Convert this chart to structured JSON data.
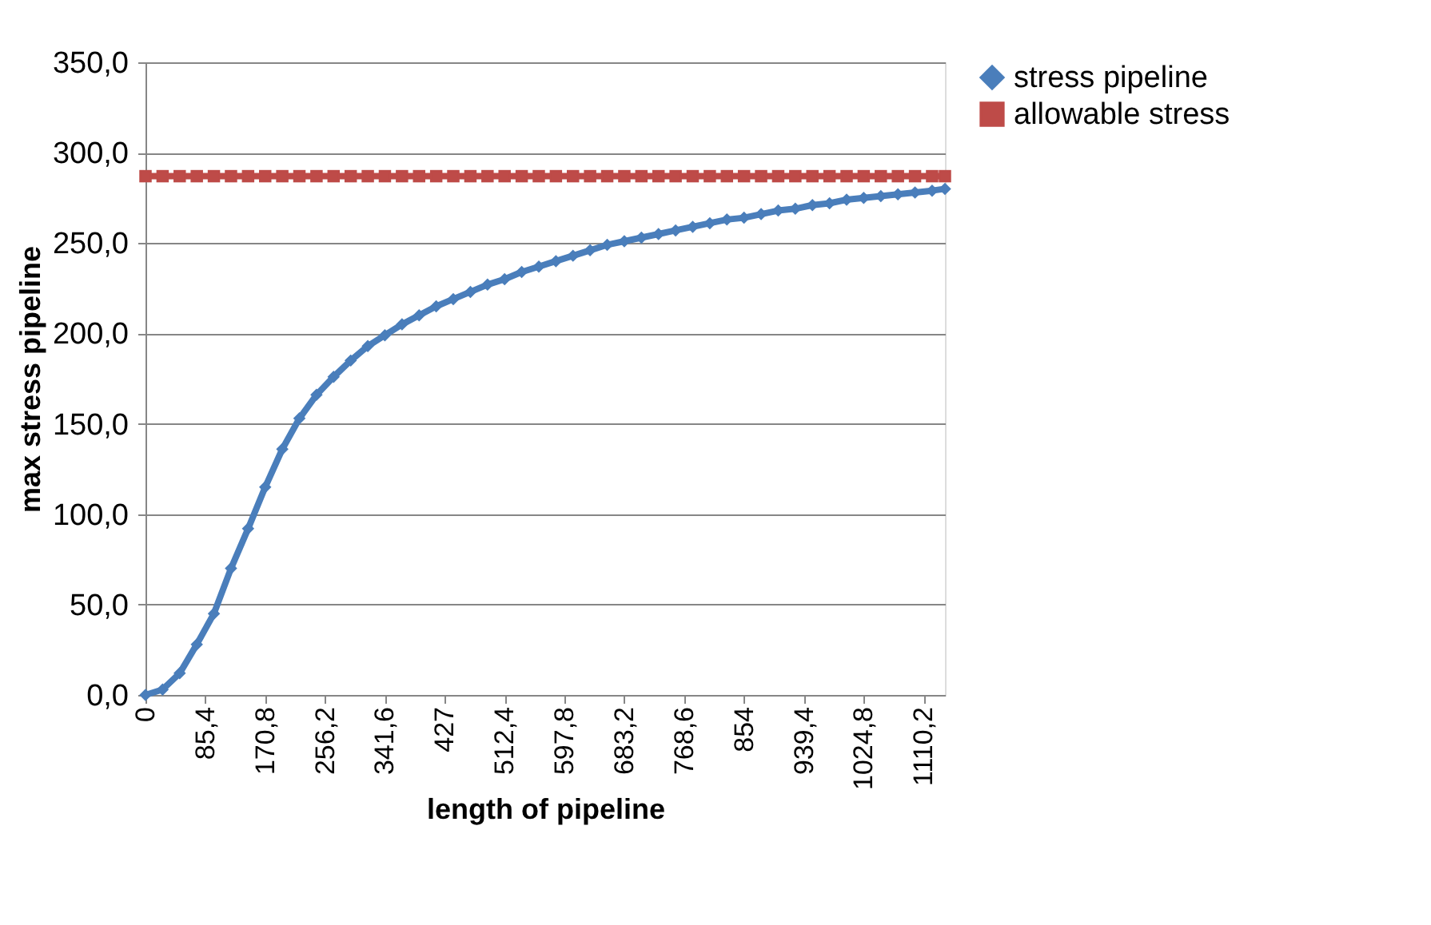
{
  "chart_data": {
    "type": "line",
    "xlabel": "length of pipeline",
    "ylabel": "max stress pipeline",
    "x": [
      0,
      24.4,
      48.8,
      73.2,
      97.6,
      122,
      146.4,
      170.8,
      195.2,
      219.6,
      244,
      268.4,
      292.8,
      317.2,
      341.6,
      366,
      390.4,
      414.8,
      439.2,
      463.6,
      488,
      512.4,
      536.8,
      561.2,
      585.6,
      610,
      634.4,
      658.8,
      683.2,
      707.6,
      732,
      756.4,
      780.8,
      805.2,
      829.6,
      854,
      878.4,
      902.8,
      927.2,
      951.6,
      976,
      1000.4,
      1024.8,
      1049.2,
      1073.6,
      1098,
      1122.4,
      1140.7
    ],
    "series": [
      {
        "name": "stress pipeline",
        "color": "#4a7ebb",
        "marker": "diamond",
        "values": [
          0,
          3,
          12,
          28,
          45,
          70,
          92,
          115,
          136,
          153,
          166,
          176,
          185,
          193,
          199,
          205,
          210,
          215,
          219,
          223,
          227,
          230,
          234,
          237,
          240,
          243,
          246,
          249,
          251,
          253,
          255,
          257,
          259,
          261,
          263,
          264,
          266,
          268,
          269,
          271,
          272,
          274,
          275,
          276,
          277,
          278,
          279,
          280
        ]
      },
      {
        "name": "allowable stress",
        "color": "#be4b48",
        "marker": "square",
        "values": [
          287,
          287,
          287,
          287,
          287,
          287,
          287,
          287,
          287,
          287,
          287,
          287,
          287,
          287,
          287,
          287,
          287,
          287,
          287,
          287,
          287,
          287,
          287,
          287,
          287,
          287,
          287,
          287,
          287,
          287,
          287,
          287,
          287,
          287,
          287,
          287,
          287,
          287,
          287,
          287,
          287,
          287,
          287,
          287,
          287,
          287,
          287,
          287
        ]
      }
    ],
    "xlim": [
      0,
      1140.7
    ],
    "xticks": [
      0,
      {
        "value": 85.4,
        "label": "85,4"
      },
      {
        "value": 170.8,
        "label": "170,8"
      },
      {
        "value": 256.2,
        "label": "256,2"
      },
      {
        "value": 341.6,
        "label": "341,6"
      },
      427,
      {
        "value": 512.4,
        "label": "512,4"
      },
      {
        "value": 597.8,
        "label": "597,8"
      },
      {
        "value": 683.2,
        "label": "683,2"
      },
      {
        "value": 768.6,
        "label": "768,6"
      },
      854,
      {
        "value": 939.4,
        "label": "939,4"
      },
      {
        "value": 1024.8,
        "label": "1024,8"
      },
      {
        "value": 1110.2,
        "label": "1110,2"
      }
    ],
    "ylim": [
      0,
      350
    ],
    "yticks": [
      {
        "value": 0,
        "label": "0,0"
      },
      {
        "value": 50,
        "label": "50,0"
      },
      {
        "value": 100,
        "label": "100,0"
      },
      {
        "value": 150,
        "label": "150,0"
      },
      {
        "value": 200,
        "label": "200,0"
      },
      {
        "value": 250,
        "label": "250,0"
      },
      {
        "value": 300,
        "label": "300,0"
      },
      {
        "value": 350,
        "label": "350,0"
      }
    ],
    "grid": "y",
    "legend": "right",
    "line_style": "solid"
  }
}
